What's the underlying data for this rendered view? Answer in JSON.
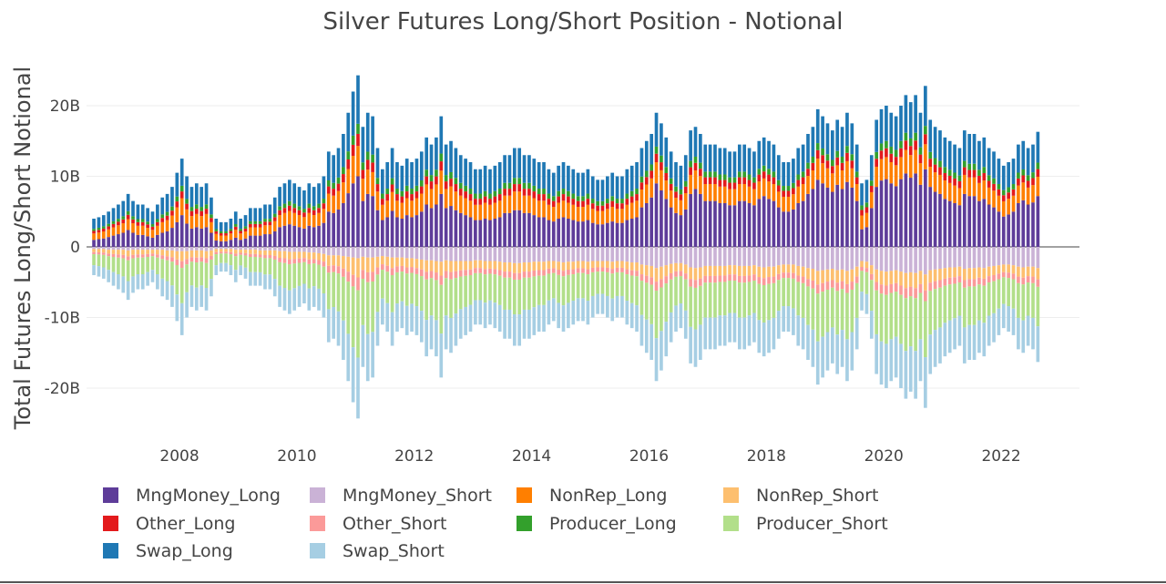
{
  "chart_data": {
    "type": "bar",
    "barmode": "relative",
    "title": "Silver Futures Long/Short Position - Notional",
    "ylabel": "Total Futures Long/Short Notional",
    "xlabel": "",
    "x_range": [
      "2006-06",
      "2023-04"
    ],
    "ylim": [
      -26,
      25
    ],
    "y_ticks": [
      {
        "value": 20,
        "label": "20B"
      },
      {
        "value": 10,
        "label": "10B"
      },
      {
        "value": 0,
        "label": "0"
      },
      {
        "value": -10,
        "label": "-10B"
      },
      {
        "value": -20,
        "label": "-20B"
      }
    ],
    "x_ticks": [
      "2008",
      "2010",
      "2012",
      "2014",
      "2016",
      "2018",
      "2020",
      "2022"
    ],
    "grid": true,
    "legend_position": "bottom",
    "colors": {
      "MngMoney_Long": "#5e3c99",
      "MngMoney_Short": "#cab2d6",
      "NonRep_Long": "#ff7f00",
      "NonRep_Short": "#fdbf6f",
      "Other_Long": "#e31a1c",
      "Other_Short": "#fb9a99",
      "Producer_Long": "#33a02c",
      "Producer_Short": "#b2df8a",
      "Swap_Long": "#1f78b4",
      "Swap_Short": "#a6cee3"
    },
    "legend": [
      "MngMoney_Long",
      "MngMoney_Short",
      "NonRep_Long",
      "NonRep_Short",
      "Other_Long",
      "Other_Short",
      "Producer_Long",
      "Producer_Short",
      "Swap_Long",
      "Swap_Short"
    ],
    "series_units": "billions USD (approximate, read from chart)",
    "dates": [
      "2006-07",
      "2006-08",
      "2006-09",
      "2006-10",
      "2006-11",
      "2006-12",
      "2007-01",
      "2007-02",
      "2007-03",
      "2007-04",
      "2007-05",
      "2007-06",
      "2007-07",
      "2007-08",
      "2007-09",
      "2007-10",
      "2007-11",
      "2007-12",
      "2008-01",
      "2008-02",
      "2008-03",
      "2008-04",
      "2008-05",
      "2008-06",
      "2008-07",
      "2008-08",
      "2008-09",
      "2008-10",
      "2008-11",
      "2008-12",
      "2009-01",
      "2009-02",
      "2009-03",
      "2009-04",
      "2009-05",
      "2009-06",
      "2009-07",
      "2009-08",
      "2009-09",
      "2009-10",
      "2009-11",
      "2009-12",
      "2010-01",
      "2010-02",
      "2010-03",
      "2010-04",
      "2010-05",
      "2010-06",
      "2010-07",
      "2010-08",
      "2010-09",
      "2010-10",
      "2010-11",
      "2010-12",
      "2011-01",
      "2011-02",
      "2011-03",
      "2011-04",
      "2011-05",
      "2011-06",
      "2011-07",
      "2011-08",
      "2011-09",
      "2011-10",
      "2011-11",
      "2011-12",
      "2012-01",
      "2012-02",
      "2012-03",
      "2012-04",
      "2012-05",
      "2012-06",
      "2012-07",
      "2012-08",
      "2012-09",
      "2012-10",
      "2012-11",
      "2012-12",
      "2013-01",
      "2013-02",
      "2013-03",
      "2013-04",
      "2013-05",
      "2013-06",
      "2013-07",
      "2013-08",
      "2013-09",
      "2013-10",
      "2013-11",
      "2013-12",
      "2014-01",
      "2014-02",
      "2014-03",
      "2014-04",
      "2014-05",
      "2014-06",
      "2014-07",
      "2014-08",
      "2014-09",
      "2014-10",
      "2014-11",
      "2014-12",
      "2015-01",
      "2015-02",
      "2015-03",
      "2015-04",
      "2015-05",
      "2015-06",
      "2015-07",
      "2015-08",
      "2015-09",
      "2015-10",
      "2015-11",
      "2015-12",
      "2016-01",
      "2016-02",
      "2016-03",
      "2016-04",
      "2016-05",
      "2016-06",
      "2016-07",
      "2016-08",
      "2016-09",
      "2016-10",
      "2016-11",
      "2016-12",
      "2017-01",
      "2017-02",
      "2017-03",
      "2017-04",
      "2017-05",
      "2017-06",
      "2017-07",
      "2017-08",
      "2017-09",
      "2017-10",
      "2017-11",
      "2017-12",
      "2018-01",
      "2018-02",
      "2018-03",
      "2018-04",
      "2018-05",
      "2018-06",
      "2018-07",
      "2018-08",
      "2018-09",
      "2018-10",
      "2018-11",
      "2018-12",
      "2019-01",
      "2019-02",
      "2019-03",
      "2019-04",
      "2019-05",
      "2019-06",
      "2019-07",
      "2019-08",
      "2019-09",
      "2019-10",
      "2019-11",
      "2019-12",
      "2020-01",
      "2020-02",
      "2020-03",
      "2020-04",
      "2020-05",
      "2020-06",
      "2020-07",
      "2020-08",
      "2020-09",
      "2020-10",
      "2020-11",
      "2020-12",
      "2021-01",
      "2021-02",
      "2021-03",
      "2021-04",
      "2021-05",
      "2021-06",
      "2021-07",
      "2021-08",
      "2021-09",
      "2021-10",
      "2021-11",
      "2021-12",
      "2022-01",
      "2022-02",
      "2022-03",
      "2022-04",
      "2022-05",
      "2022-06",
      "2022-07",
      "2022-08",
      "2022-09",
      "2022-10",
      "2022-11",
      "2022-12",
      "2023-01",
      "2023-02",
      "2023-03",
      "2023-04"
    ],
    "total_long": [
      4.0,
      4.2,
      4.5,
      5.0,
      5.5,
      6.0,
      6.5,
      7.5,
      6.5,
      6.0,
      6.0,
      5.5,
      5.0,
      6.0,
      7.0,
      7.5,
      8.5,
      10.5,
      12.5,
      10.0,
      8.5,
      9.0,
      8.5,
      9.0,
      7.0,
      4.0,
      3.5,
      3.5,
      4.0,
      5.0,
      4.0,
      4.5,
      5.5,
      5.5,
      5.5,
      6.0,
      6.0,
      7.0,
      8.5,
      9.0,
      9.5,
      9.0,
      8.5,
      8.0,
      9.0,
      8.5,
      9.0,
      10.0,
      13.5,
      13.0,
      14.0,
      16.0,
      19.0,
      22.0,
      24.3,
      17.0,
      19.0,
      18.5,
      14.0,
      11.0,
      12.0,
      14.0,
      12.0,
      11.5,
      12.5,
      12.0,
      12.5,
      13.5,
      15.5,
      14.5,
      15.5,
      18.5,
      14.5,
      15.0,
      14.0,
      13.0,
      12.5,
      12.0,
      11.0,
      11.0,
      11.5,
      11.0,
      11.5,
      12.0,
      13.0,
      13.0,
      14.0,
      14.0,
      13.0,
      13.0,
      12.5,
      12.0,
      12.0,
      11.0,
      10.5,
      11.5,
      12.0,
      11.5,
      11.0,
      10.5,
      10.5,
      11.0,
      10.0,
      9.5,
      9.5,
      10.0,
      10.5,
      10.0,
      10.0,
      11.0,
      11.5,
      12.0,
      14.0,
      15.0,
      16.0,
      19.0,
      17.5,
      15.5,
      13.5,
      12.0,
      11.5,
      13.0,
      16.5,
      17.0,
      16.0,
      14.5,
      14.5,
      14.5,
      14.0,
      14.0,
      13.5,
      13.5,
      14.5,
      14.5,
      14.0,
      13.5,
      15.0,
      15.5,
      15.0,
      14.5,
      13.0,
      12.0,
      12.0,
      12.5,
      14.0,
      14.5,
      16.0,
      17.0,
      19.5,
      18.5,
      17.5,
      16.5,
      18.0,
      17.0,
      19.0,
      17.5,
      14.5,
      9.0,
      9.5,
      13.0,
      18.0,
      19.5,
      20.0,
      19.0,
      18.5,
      20.0,
      21.5,
      20.5,
      21.5,
      19.0,
      22.8,
      18.0,
      17.0,
      16.5,
      15.5,
      15.0,
      14.5,
      14.0,
      16.5,
      16.0,
      16.0,
      15.0,
      15.5,
      14.0,
      13.5,
      12.5,
      11.5,
      12.0,
      12.5,
      14.5,
      15.0,
      14.0,
      14.5,
      16.3
    ],
    "total_short": [
      -4.0,
      -4.2,
      -4.5,
      -5.0,
      -5.5,
      -6.0,
      -6.5,
      -7.5,
      -6.5,
      -6.0,
      -6.0,
      -5.5,
      -5.0,
      -6.0,
      -7.0,
      -7.5,
      -8.5,
      -10.5,
      -12.5,
      -10.0,
      -8.5,
      -9.0,
      -8.5,
      -9.0,
      -7.0,
      -4.0,
      -3.5,
      -3.5,
      -4.0,
      -5.0,
      -4.0,
      -4.5,
      -5.5,
      -5.5,
      -5.5,
      -6.0,
      -6.0,
      -7.0,
      -8.5,
      -9.0,
      -9.5,
      -9.0,
      -8.5,
      -8.0,
      -9.0,
      -8.5,
      -9.0,
      -10.0,
      -13.5,
      -13.0,
      -14.0,
      -16.0,
      -19.0,
      -22.0,
      -24.3,
      -17.0,
      -19.0,
      -18.5,
      -14.0,
      -11.0,
      -12.0,
      -14.0,
      -12.0,
      -11.5,
      -12.5,
      -12.0,
      -12.5,
      -13.5,
      -15.5,
      -14.5,
      -15.5,
      -18.5,
      -14.5,
      -15.0,
      -14.0,
      -13.0,
      -12.5,
      -12.0,
      -11.0,
      -11.0,
      -11.5,
      -11.0,
      -11.5,
      -12.0,
      -13.0,
      -13.0,
      -14.0,
      -14.0,
      -13.0,
      -13.0,
      -12.5,
      -12.0,
      -12.0,
      -11.0,
      -10.5,
      -11.5,
      -12.0,
      -11.5,
      -11.0,
      -10.5,
      -10.5,
      -11.0,
      -10.0,
      -9.5,
      -9.5,
      -10.0,
      -10.5,
      -10.0,
      -10.0,
      -11.0,
      -11.5,
      -12.0,
      -14.0,
      -15.0,
      -16.0,
      -19.0,
      -17.5,
      -15.5,
      -13.5,
      -12.0,
      -11.5,
      -13.0,
      -16.5,
      -17.0,
      -16.0,
      -14.5,
      -14.5,
      -14.5,
      -14.0,
      -14.0,
      -13.5,
      -13.5,
      -14.5,
      -14.5,
      -14.0,
      -13.5,
      -15.0,
      -15.5,
      -15.0,
      -14.5,
      -13.0,
      -12.0,
      -12.0,
      -12.5,
      -14.0,
      -14.5,
      -16.0,
      -17.0,
      -19.5,
      -18.5,
      -17.5,
      -16.5,
      -18.0,
      -17.0,
      -19.0,
      -17.5,
      -14.5,
      -9.0,
      -9.5,
      -13.0,
      -18.0,
      -19.5,
      -20.0,
      -19.0,
      -18.5,
      -20.0,
      -21.5,
      -20.5,
      -21.5,
      -19.0,
      -22.8,
      -18.0,
      -17.0,
      -16.5,
      -15.5,
      -15.0,
      -14.5,
      -14.0,
      -16.5,
      -16.0,
      -16.0,
      -15.0,
      -15.5,
      -14.0,
      -13.5,
      -12.5,
      -11.5,
      -12.0,
      -12.5,
      -14.5,
      -15.0,
      -14.0,
      -14.5,
      -16.3
    ],
    "mngmoney_long": [
      1.0,
      1.1,
      1.2,
      1.4,
      1.6,
      1.8,
      2.0,
      2.4,
      2.0,
      1.7,
      1.7,
      1.5,
      1.3,
      1.7,
      2.0,
      2.2,
      2.7,
      3.5,
      4.5,
      3.3,
      2.6,
      2.8,
      2.6,
      2.8,
      2.0,
      0.9,
      0.8,
      0.8,
      1.0,
      1.3,
      1.0,
      1.2,
      1.6,
      1.6,
      1.6,
      1.8,
      1.8,
      2.2,
      2.8,
      3.0,
      3.2,
      3.0,
      2.8,
      2.6,
      3.0,
      2.8,
      3.0,
      3.4,
      5.0,
      4.8,
      5.3,
      6.2,
      7.6,
      9.0,
      10.0,
      6.5,
      7.5,
      7.2,
      5.2,
      3.8,
      4.2,
      5.1,
      4.2,
      4.0,
      4.5,
      4.2,
      4.5,
      5.0,
      6.0,
      5.5,
      6.0,
      7.5,
      5.5,
      5.8,
      5.2,
      4.8,
      4.5,
      4.2,
      3.8,
      3.8,
      4.0,
      3.8,
      4.0,
      4.2,
      4.8,
      4.8,
      5.2,
      5.2,
      4.8,
      4.8,
      4.5,
      4.2,
      4.2,
      3.8,
      3.6,
      4.0,
      4.2,
      4.0,
      3.8,
      3.6,
      3.6,
      3.8,
      3.4,
      3.2,
      3.2,
      3.4,
      3.6,
      3.4,
      3.4,
      3.8,
      4.0,
      4.2,
      5.6,
      6.2,
      7.0,
      9.0,
      8.0,
      6.8,
      5.6,
      4.8,
      4.5,
      5.3,
      7.5,
      8.2,
      7.5,
      6.5,
      6.5,
      6.5,
      6.2,
      6.2,
      5.9,
      5.9,
      6.5,
      6.5,
      6.2,
      5.9,
      6.8,
      7.2,
      6.8,
      6.5,
      5.6,
      5.0,
      5.0,
      5.3,
      6.2,
      6.5,
      7.5,
      8.2,
      9.5,
      9.0,
      8.4,
      7.8,
      8.8,
      8.2,
      9.2,
      8.4,
      6.5,
      2.5,
      2.8,
      5.5,
      8.5,
      9.4,
      9.6,
      9.0,
      8.6,
      9.6,
      10.4,
      9.8,
      10.4,
      8.8,
      11.0,
      8.5,
      7.8,
      7.5,
      6.8,
      6.5,
      6.2,
      5.9,
      7.5,
      7.2,
      7.2,
      6.5,
      6.8,
      6.0,
      5.6,
      5.0,
      4.3,
      4.6,
      5.0,
      6.2,
      6.6,
      6.0,
      6.3,
      7.2
    ],
    "mngmoney_short": [
      -0.3,
      -0.3,
      -0.3,
      -0.4,
      -0.4,
      -0.4,
      -0.4,
      -0.5,
      -0.4,
      -0.4,
      -0.4,
      -0.4,
      -0.4,
      -0.4,
      -0.4,
      -0.5,
      -0.5,
      -0.6,
      -0.6,
      -0.6,
      -0.5,
      -0.5,
      -0.5,
      -0.6,
      -0.5,
      -0.3,
      -0.3,
      -0.3,
      -0.3,
      -0.4,
      -0.4,
      -0.4,
      -0.4,
      -0.4,
      -0.5,
      -0.5,
      -0.5,
      -0.5,
      -0.6,
      -0.6,
      -0.7,
      -0.7,
      -0.7,
      -0.7,
      -0.8,
      -0.8,
      -0.9,
      -1.0,
      -1.2,
      -1.2,
      -1.2,
      -1.3,
      -1.4,
      -1.5,
      -1.6,
      -1.4,
      -1.5,
      -1.5,
      -1.4,
      -1.3,
      -1.4,
      -1.5,
      -1.5,
      -1.5,
      -1.6,
      -1.6,
      -1.7,
      -1.8,
      -1.9,
      -1.9,
      -2.0,
      -2.1,
      -1.9,
      -2.0,
      -2.0,
      -2.0,
      -2.0,
      -2.0,
      -1.9,
      -1.9,
      -2.0,
      -2.0,
      -2.0,
      -2.1,
      -2.2,
      -2.2,
      -2.3,
      -2.3,
      -2.2,
      -2.2,
      -2.1,
      -2.1,
      -2.1,
      -2.0,
      -2.0,
      -2.1,
      -2.2,
      -2.1,
      -2.1,
      -2.0,
      -2.0,
      -2.1,
      -2.0,
      -2.0,
      -2.0,
      -2.0,
      -2.1,
      -2.0,
      -2.0,
      -2.1,
      -2.2,
      -2.2,
      -2.5,
      -2.6,
      -2.7,
      -3.0,
      -2.8,
      -2.6,
      -2.4,
      -2.3,
      -2.3,
      -2.5,
      -2.9,
      -3.0,
      -2.9,
      -2.7,
      -2.7,
      -2.7,
      -2.7,
      -2.7,
      -2.6,
      -2.6,
      -2.7,
      -2.7,
      -2.7,
      -2.6,
      -2.8,
      -2.9,
      -2.8,
      -2.8,
      -2.6,
      -2.5,
      -2.5,
      -2.5,
      -2.7,
      -2.8,
      -3.0,
      -3.1,
      -3.4,
      -3.3,
      -3.2,
      -3.1,
      -3.3,
      -3.2,
      -3.4,
      -3.2,
      -2.8,
      -2.0,
      -2.1,
      -2.6,
      -3.2,
      -3.4,
      -3.5,
      -3.4,
      -3.3,
      -3.5,
      -3.7,
      -3.6,
      -3.7,
      -3.4,
      -3.9,
      -3.3,
      -3.2,
      -3.1,
      -3.0,
      -2.9,
      -2.9,
      -2.8,
      -3.1,
      -3.0,
      -3.0,
      -2.9,
      -3.0,
      -2.8,
      -2.7,
      -2.6,
      -2.5,
      -2.5,
      -2.6,
      -2.8,
      -2.9,
      -2.8,
      -2.8,
      -3.0
    ]
  }
}
